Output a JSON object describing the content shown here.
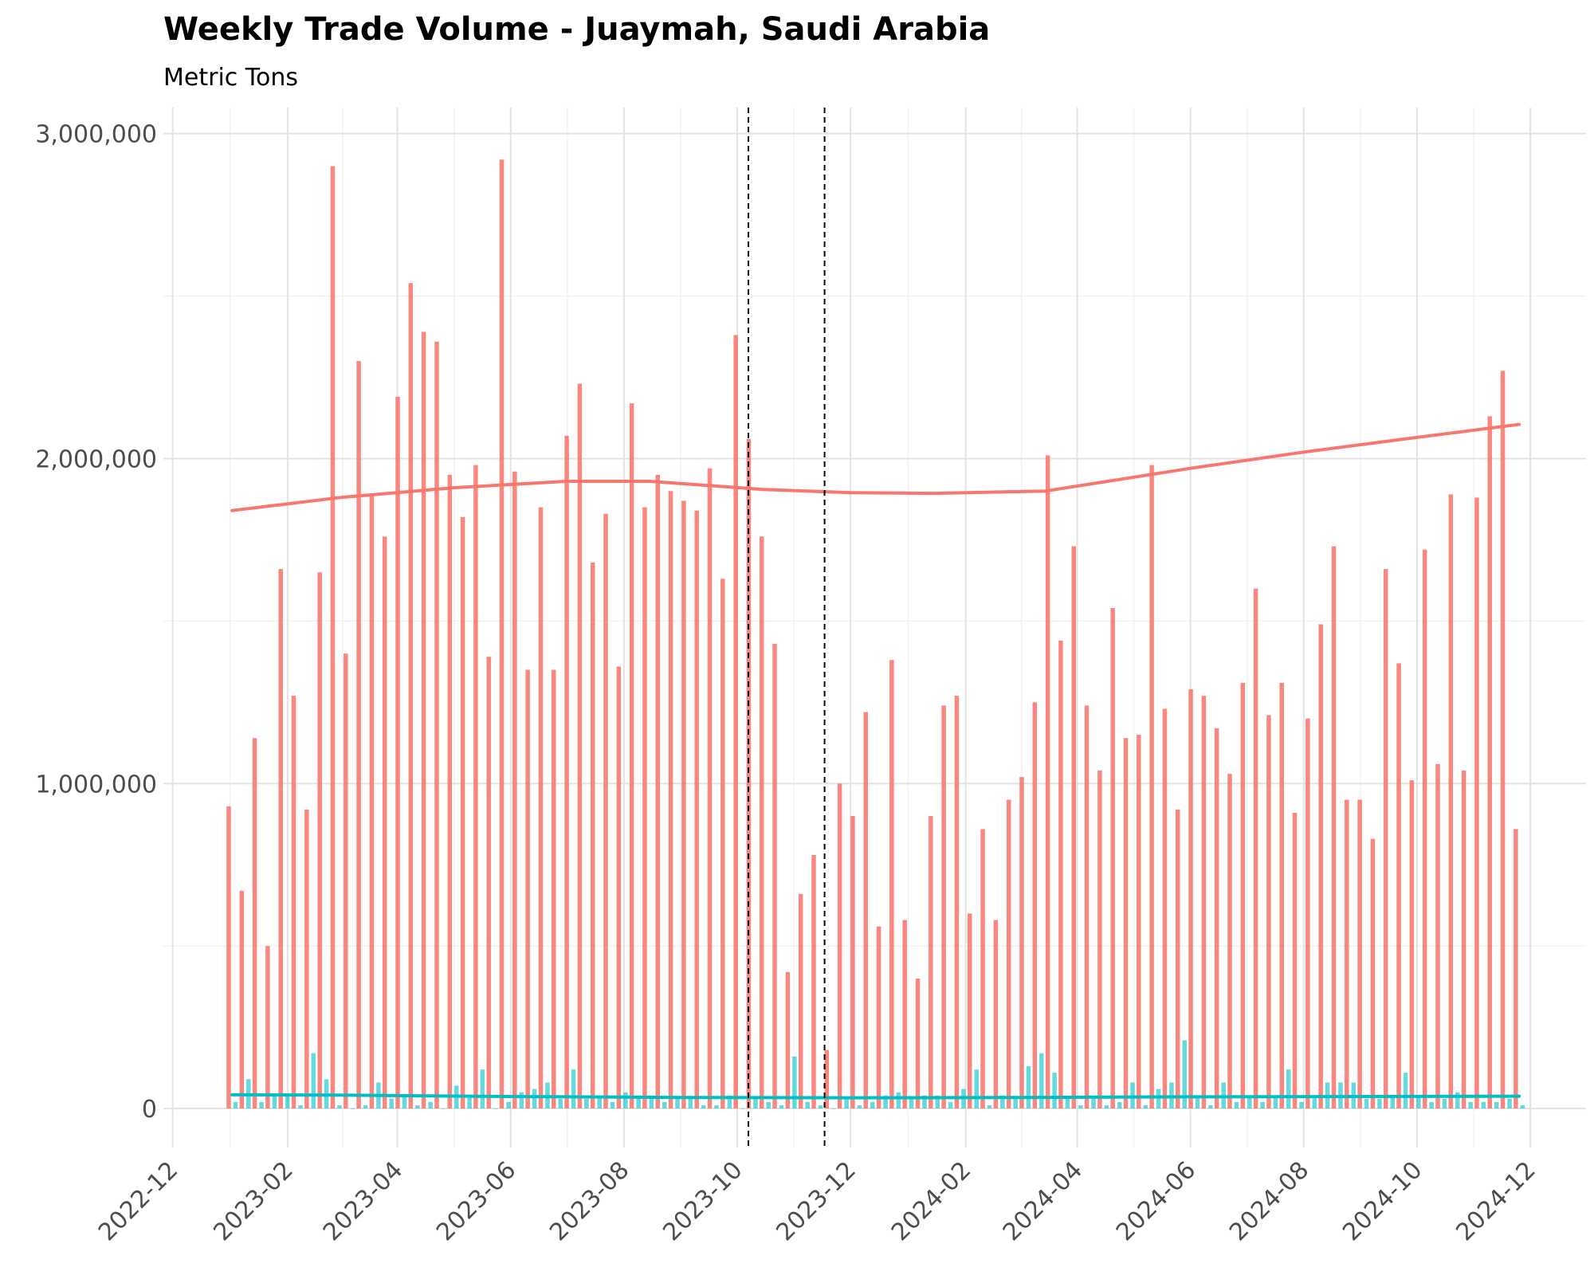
{
  "chart_data": {
    "type": "bar",
    "title": "Weekly Trade Volume - Juaymah, Saudi Arabia",
    "subtitle": "Metric Tons",
    "xlabel": "",
    "ylabel": "",
    "x_range": [
      "2022-11-26",
      "2024-12-31"
    ],
    "ylim": [
      -120000,
      3080000
    ],
    "y_ticks": [
      0,
      1000000,
      2000000,
      3000000
    ],
    "y_tick_labels": [
      "0",
      "1,000,000",
      "2,000,000",
      "3,000,000"
    ],
    "x_ticks": [
      "2022-12-01",
      "2023-02-01",
      "2023-04-01",
      "2023-06-01",
      "2023-08-01",
      "2023-10-01",
      "2023-12-01",
      "2024-02-01",
      "2024-04-01",
      "2024-06-01",
      "2024-08-01",
      "2024-10-01",
      "2024-12-01"
    ],
    "x_tick_labels": [
      "2022-12",
      "2023-02",
      "2023-04",
      "2023-06",
      "2023-08",
      "2023-10",
      "2023-12",
      "2024-02",
      "2024-04",
      "2024-06",
      "2024-08",
      "2024-10",
      "2024-12"
    ],
    "grid": true,
    "legend": "none",
    "colors": {
      "series1": "#F8766D",
      "series2": "#00BFC4"
    },
    "vlines": [
      "2023-10-07",
      "2023-11-17"
    ],
    "series": [
      {
        "dates": [
          "2023-01-02",
          "2023-01-09",
          "2023-01-16",
          "2023-01-23",
          "2023-01-30",
          "2023-02-06",
          "2023-02-13",
          "2023-02-20",
          "2023-02-27",
          "2023-03-06",
          "2023-03-13",
          "2023-03-20",
          "2023-03-27",
          "2023-04-03",
          "2023-04-10",
          "2023-04-17",
          "2023-04-24",
          "2023-05-01",
          "2023-05-08",
          "2023-05-15",
          "2023-05-22",
          "2023-05-29",
          "2023-06-05",
          "2023-06-12",
          "2023-06-19",
          "2023-06-26",
          "2023-07-03",
          "2023-07-10",
          "2023-07-17",
          "2023-07-24",
          "2023-07-31",
          "2023-08-07",
          "2023-08-14",
          "2023-08-21",
          "2023-08-28",
          "2023-09-04",
          "2023-09-11",
          "2023-09-18",
          "2023-09-25",
          "2023-10-02",
          "2023-10-09",
          "2023-10-16",
          "2023-10-23",
          "2023-10-30",
          "2023-11-06",
          "2023-11-13",
          "2023-11-20",
          "2023-11-27",
          "2023-12-04",
          "2023-12-11",
          "2023-12-18",
          "2023-12-25",
          "2024-01-01",
          "2024-01-08",
          "2024-01-15",
          "2024-01-22",
          "2024-01-29",
          "2024-02-05",
          "2024-02-12",
          "2024-02-19",
          "2024-02-26",
          "2024-03-04",
          "2024-03-11",
          "2024-03-18",
          "2024-03-25",
          "2024-04-01",
          "2024-04-08",
          "2024-04-15",
          "2024-04-22",
          "2024-04-29",
          "2024-05-06",
          "2024-05-13",
          "2024-05-20",
          "2024-05-27",
          "2024-06-03",
          "2024-06-10",
          "2024-06-17",
          "2024-06-24",
          "2024-07-01",
          "2024-07-08",
          "2024-07-15",
          "2024-07-22",
          "2024-07-29",
          "2024-08-05",
          "2024-08-12",
          "2024-08-19",
          "2024-08-26",
          "2024-09-02",
          "2024-09-09",
          "2024-09-16",
          "2024-09-23",
          "2024-09-30",
          "2024-10-07",
          "2024-10-14",
          "2024-10-21",
          "2024-10-28",
          "2024-11-04",
          "2024-11-11",
          "2024-11-18",
          "2024-11-25"
        ],
        "values": [
          930000,
          670000,
          1140000,
          500000,
          1660000,
          1270000,
          920000,
          1650000,
          2900000,
          1400000,
          2300000,
          1890000,
          1760000,
          2190000,
          2540000,
          2390000,
          2360000,
          1950000,
          1820000,
          1980000,
          1390000,
          2920000,
          1960000,
          1350000,
          1850000,
          1350000,
          2070000,
          2230000,
          1680000,
          1830000,
          1360000,
          2170000,
          1850000,
          1950000,
          1900000,
          1870000,
          1840000,
          1970000,
          1630000,
          2380000,
          2060000,
          1760000,
          1430000,
          420000,
          660000,
          780000,
          180000,
          1000000,
          900000,
          1220000,
          560000,
          1380000,
          580000,
          400000,
          900000,
          1240000,
          1270000,
          600000,
          860000,
          580000,
          950000,
          1020000,
          1250000,
          2010000,
          1440000,
          1730000,
          1240000,
          1040000,
          1540000,
          1140000,
          1150000,
          1980000,
          1230000,
          920000,
          1290000,
          1270000,
          1170000,
          1030000,
          1310000,
          1600000,
          1210000,
          1310000,
          910000,
          1200000,
          1490000,
          1730000,
          950000,
          950000,
          830000,
          1660000,
          1370000,
          1010000,
          1720000,
          1060000,
          1890000,
          1040000,
          1880000,
          2130000,
          2270000,
          860000
        ]
      },
      {
        "dates": [
          "2023-01-02",
          "2023-01-09",
          "2023-01-16",
          "2023-01-23",
          "2023-01-30",
          "2023-02-06",
          "2023-02-13",
          "2023-02-20",
          "2023-02-27",
          "2023-03-06",
          "2023-03-13",
          "2023-03-20",
          "2023-03-27",
          "2023-04-03",
          "2023-04-10",
          "2023-04-17",
          "2023-04-24",
          "2023-05-01",
          "2023-05-08",
          "2023-05-15",
          "2023-05-22",
          "2023-05-29",
          "2023-06-05",
          "2023-06-12",
          "2023-06-19",
          "2023-06-26",
          "2023-07-03",
          "2023-07-10",
          "2023-07-17",
          "2023-07-24",
          "2023-07-31",
          "2023-08-07",
          "2023-08-14",
          "2023-08-21",
          "2023-08-28",
          "2023-09-04",
          "2023-09-11",
          "2023-09-18",
          "2023-09-25",
          "2023-10-02",
          "2023-10-09",
          "2023-10-16",
          "2023-10-23",
          "2023-10-30",
          "2023-11-06",
          "2023-11-13",
          "2023-11-20",
          "2023-11-27",
          "2023-12-04",
          "2023-12-11",
          "2023-12-18",
          "2023-12-25",
          "2024-01-01",
          "2024-01-08",
          "2024-01-15",
          "2024-01-22",
          "2024-01-29",
          "2024-02-05",
          "2024-02-12",
          "2024-02-19",
          "2024-02-26",
          "2024-03-04",
          "2024-03-11",
          "2024-03-18",
          "2024-03-25",
          "2024-04-01",
          "2024-04-08",
          "2024-04-15",
          "2024-04-22",
          "2024-04-29",
          "2024-05-06",
          "2024-05-13",
          "2024-05-20",
          "2024-05-27",
          "2024-06-03",
          "2024-06-10",
          "2024-06-17",
          "2024-06-24",
          "2024-07-01",
          "2024-07-08",
          "2024-07-15",
          "2024-07-22",
          "2024-07-29",
          "2024-08-05",
          "2024-08-12",
          "2024-08-19",
          "2024-08-26",
          "2024-09-02",
          "2024-09-09",
          "2024-09-16",
          "2024-09-23",
          "2024-09-30",
          "2024-10-07",
          "2024-10-14",
          "2024-10-21",
          "2024-10-28",
          "2024-11-04",
          "2024-11-11",
          "2024-11-18",
          "2024-11-25"
        ],
        "values": [
          20000,
          90000,
          20000,
          40000,
          40000,
          10000,
          170000,
          90000,
          10000,
          0,
          10000,
          80000,
          30000,
          40000,
          10000,
          20000,
          0,
          70000,
          40000,
          120000,
          0,
          20000,
          50000,
          60000,
          80000,
          30000,
          120000,
          30000,
          40000,
          20000,
          50000,
          40000,
          40000,
          20000,
          30000,
          30000,
          10000,
          10000,
          40000,
          0,
          30000,
          20000,
          10000,
          160000,
          20000,
          10000,
          0,
          30000,
          10000,
          20000,
          40000,
          50000,
          30000,
          40000,
          40000,
          20000,
          60000,
          120000,
          10000,
          40000,
          30000,
          130000,
          170000,
          110000,
          30000,
          10000,
          40000,
          10000,
          20000,
          80000,
          10000,
          60000,
          80000,
          210000,
          40000,
          10000,
          80000,
          20000,
          40000,
          20000,
          40000,
          120000,
          20000,
          40000,
          80000,
          80000,
          80000,
          30000,
          30000,
          40000,
          110000,
          40000,
          20000,
          30000,
          50000,
          20000,
          20000,
          20000,
          30000,
          10000
        ]
      }
    ],
    "trend_lines": [
      {
        "dates": [
          "2023-01-02",
          "2023-03-01",
          "2023-05-01",
          "2023-07-01",
          "2023-08-15",
          "2023-10-15",
          "2023-12-01",
          "2024-01-15",
          "2024-03-15",
          "2024-06-01",
          "2024-08-01",
          "2024-10-01",
          "2024-11-25"
        ],
        "values": [
          1840000,
          1880000,
          1910000,
          1930000,
          1930000,
          1905000,
          1895000,
          1893000,
          1900000,
          1970000,
          2020000,
          2065000,
          2105000
        ]
      },
      {
        "dates": [
          "2023-01-02",
          "2023-03-01",
          "2023-06-01",
          "2023-09-01",
          "2023-12-01",
          "2024-03-01",
          "2024-06-01",
          "2024-09-01",
          "2024-11-25"
        ],
        "values": [
          42000,
          41000,
          37000,
          34000,
          33000,
          34000,
          36000,
          37000,
          38000
        ]
      }
    ]
  }
}
